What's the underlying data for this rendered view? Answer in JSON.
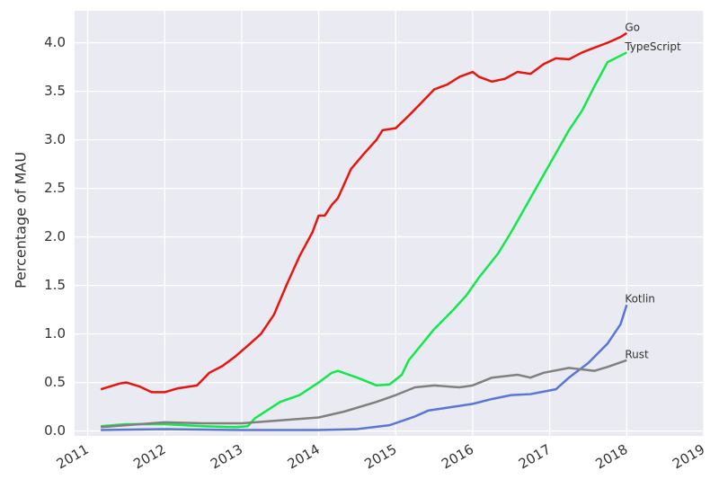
{
  "chart_data": {
    "type": "line",
    "y_label": "Percentage of MAU",
    "xlim": [
      2010.83,
      2019.0
    ],
    "xticks": [
      2011,
      2012,
      2013,
      2014,
      2015,
      2016,
      2017,
      2018,
      2019
    ],
    "ylim": [
      -0.05,
      4.33
    ],
    "yticks": [
      {
        "value": 0,
        "label": "0.0"
      },
      0.5,
      {
        "value": 1,
        "label": "1.0"
      },
      1.5,
      {
        "value": 2,
        "label": "2.0"
      },
      2.5,
      {
        "value": 3,
        "label": "3.0"
      },
      3.5,
      {
        "value": 4,
        "label": "4.0"
      }
    ],
    "grid": true,
    "series": [
      {
        "name": "Go",
        "color": "#e8150c",
        "x": [
          2011.17,
          2011.42,
          2011.5,
          2011.67,
          2011.83,
          2012.0,
          2012.17,
          2012.42,
          2012.58,
          2012.75,
          2012.92,
          2013.08,
          2013.25,
          2013.42,
          2013.58,
          2013.75,
          2013.92,
          2014.0,
          2014.08,
          2014.17,
          2014.25,
          2014.42,
          2014.58,
          2014.75,
          2014.83,
          2015.0,
          2015.17,
          2015.33,
          2015.5,
          2015.67,
          2015.83,
          2016.0,
          2016.08,
          2016.25,
          2016.42,
          2016.58,
          2016.75,
          2016.92,
          2017.08,
          2017.25,
          2017.42,
          2017.58,
          2017.75,
          2017.92,
          2018.0
        ],
        "values": [
          0.43,
          0.49,
          0.5,
          0.46,
          0.4,
          0.4,
          0.44,
          0.47,
          0.6,
          0.67,
          0.77,
          0.88,
          1.0,
          1.2,
          1.5,
          1.8,
          2.05,
          2.22,
          2.22,
          2.33,
          2.4,
          2.7,
          2.85,
          3.0,
          3.1,
          3.12,
          3.25,
          3.38,
          3.52,
          3.57,
          3.65,
          3.7,
          3.65,
          3.6,
          3.63,
          3.7,
          3.68,
          3.78,
          3.84,
          3.83,
          3.9,
          3.95,
          4.0,
          4.06,
          4.1
        ]
      },
      {
        "name": "TypeScript",
        "color": "#12e84a",
        "x": [
          2011.17,
          2011.5,
          2012.0,
          2012.5,
          2012.92,
          2013.08,
          2013.17,
          2013.5,
          2013.75,
          2014.0,
          2014.17,
          2014.25,
          2014.5,
          2014.75,
          2014.92,
          2015.08,
          2015.17,
          2015.5,
          2015.75,
          2015.92,
          2016.08,
          2016.33,
          2016.5,
          2016.75,
          2017.0,
          2017.25,
          2017.42,
          2017.58,
          2017.75,
          2018.0
        ],
        "values": [
          0.05,
          0.07,
          0.07,
          0.05,
          0.04,
          0.05,
          0.13,
          0.3,
          0.37,
          0.5,
          0.6,
          0.62,
          0.55,
          0.47,
          0.48,
          0.58,
          0.73,
          1.05,
          1.25,
          1.4,
          1.58,
          1.83,
          2.05,
          2.4,
          2.75,
          3.1,
          3.3,
          3.55,
          3.8,
          3.9
        ]
      },
      {
        "name": "Kotlin",
        "color": "#5a76d4",
        "x": [
          2011.17,
          2012.0,
          2013.0,
          2014.0,
          2014.5,
          2014.92,
          2015.25,
          2015.42,
          2015.75,
          2016.0,
          2016.25,
          2016.5,
          2016.75,
          2017.08,
          2017.25,
          2017.5,
          2017.75,
          2017.92,
          2018.0
        ],
        "values": [
          0.01,
          0.02,
          0.01,
          0.01,
          0.02,
          0.06,
          0.15,
          0.21,
          0.25,
          0.28,
          0.33,
          0.37,
          0.38,
          0.43,
          0.55,
          0.7,
          0.9,
          1.1,
          1.3
        ]
      },
      {
        "name": "Rust",
        "color": "#808080",
        "x": [
          2011.17,
          2011.5,
          2012.0,
          2012.5,
          2013.0,
          2013.5,
          2014.0,
          2014.33,
          2014.75,
          2015.0,
          2015.25,
          2015.5,
          2015.83,
          2016.0,
          2016.25,
          2016.58,
          2016.75,
          2016.92,
          2017.25,
          2017.58,
          2017.75,
          2018.0
        ],
        "values": [
          0.04,
          0.06,
          0.09,
          0.08,
          0.08,
          0.11,
          0.14,
          0.2,
          0.3,
          0.37,
          0.45,
          0.47,
          0.45,
          0.47,
          0.55,
          0.58,
          0.55,
          0.6,
          0.65,
          0.62,
          0.66,
          0.73
        ]
      }
    ]
  }
}
